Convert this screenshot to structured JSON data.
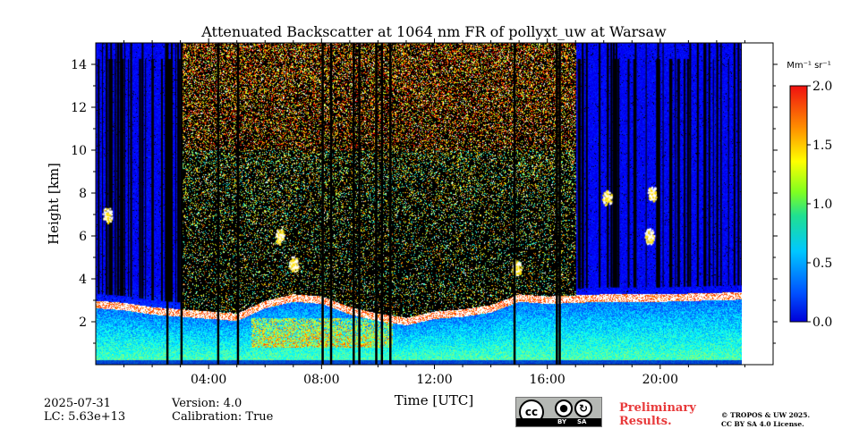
{
  "chart_data": {
    "type": "heatmap",
    "title": "Attenuated Backscatter at 1064 nm FR of pollyxt_uw at Warsaw",
    "xlabel": "Time [UTC]",
    "ylabel": "Height [km]",
    "xlim": [
      0,
      24
    ],
    "ylim": [
      0,
      15
    ],
    "x_ticks": [
      {
        "value": 4,
        "label": "04:00"
      },
      {
        "value": 8,
        "label": "08:00"
      },
      {
        "value": 12,
        "label": "12:00"
      },
      {
        "value": 16,
        "label": "16:00"
      },
      {
        "value": 20,
        "label": "20:00"
      }
    ],
    "y_ticks": [
      {
        "value": 2,
        "label": "2"
      },
      {
        "value": 4,
        "label": "4"
      },
      {
        "value": 6,
        "label": "6"
      },
      {
        "value": 8,
        "label": "8"
      },
      {
        "value": 10,
        "label": "10"
      },
      {
        "value": 12,
        "label": "12"
      },
      {
        "value": 14,
        "label": "14"
      }
    ],
    "data_end_time": 22.9,
    "colorbar": {
      "unit": "Mm⁻¹ sr⁻¹",
      "range": [
        0.0,
        2.0
      ],
      "ticks": [
        {
          "value": 0.0,
          "label": "0.0"
        },
        {
          "value": 0.5,
          "label": "0.5"
        },
        {
          "value": 1.0,
          "label": "1.0"
        },
        {
          "value": 1.5,
          "label": "1.5"
        },
        {
          "value": 2.0,
          "label": "2.0"
        }
      ],
      "colormap": "jet"
    },
    "boundary_layer_top": [
      [
        0.0,
        3.0
      ],
      [
        1.0,
        2.9
      ],
      [
        2.0,
        2.7
      ],
      [
        3.0,
        2.6
      ],
      [
        4.0,
        2.5
      ],
      [
        5.0,
        2.4
      ],
      [
        6.0,
        3.0
      ],
      [
        7.0,
        3.3
      ],
      [
        8.0,
        3.2
      ],
      [
        9.0,
        2.7
      ],
      [
        10.0,
        2.4
      ],
      [
        11.0,
        2.2
      ],
      [
        12.0,
        2.5
      ],
      [
        13.0,
        2.6
      ],
      [
        14.0,
        2.8
      ],
      [
        15.0,
        3.3
      ],
      [
        16.0,
        3.2
      ],
      [
        18.0,
        3.3
      ],
      [
        20.0,
        3.3
      ],
      [
        22.9,
        3.4
      ]
    ],
    "cloud_features": [
      {
        "time": 0.4,
        "height": 7.0
      },
      {
        "time": 6.5,
        "height": 6.0
      },
      {
        "time": 7.0,
        "height": 4.7
      },
      {
        "time": 14.9,
        "height": 4.5
      },
      {
        "time": 18.1,
        "height": 7.8
      },
      {
        "time": 19.6,
        "height": 6.0
      },
      {
        "time": 19.7,
        "height": 8.0
      }
    ],
    "no_signal_profiles": [
      2.5,
      3.0,
      4.3,
      5.0,
      8.0,
      8.3,
      9.1,
      9.3,
      9.9,
      10.1,
      10.4,
      14.8,
      16.3,
      16.4
    ]
  },
  "footer": {
    "date": "2025-07-31",
    "lc": "LC: 5.63e+13",
    "version": "Version: 4.0",
    "calibration": "Calibration: True",
    "preliminary_line1": "Preliminary",
    "preliminary_line2": "Results.",
    "copyright_line1": "© TROPOS & UW 2025.",
    "copyright_line2": "CC BY SA 4.0 License.",
    "license_badge": {
      "cc": "cc",
      "by": "BY",
      "sa": "SA"
    }
  },
  "colors": {
    "background_blue": "#0a3cff",
    "no_signal": "#000000",
    "highlight": "#ffffff",
    "preliminary": "#e8393a"
  }
}
